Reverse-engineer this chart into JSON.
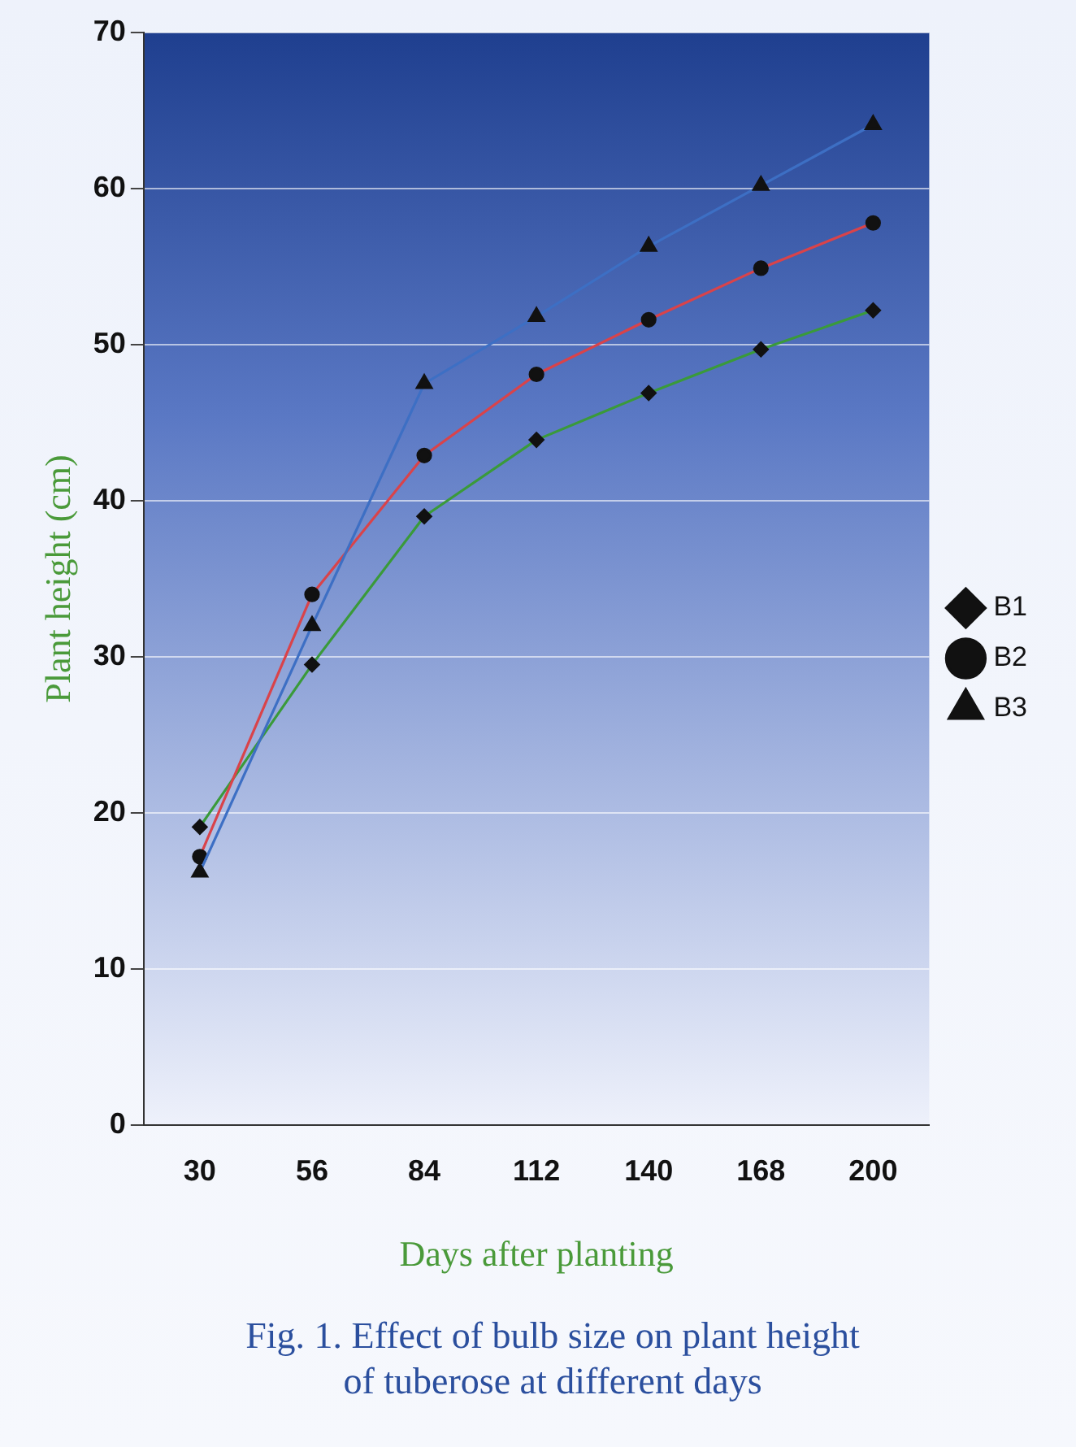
{
  "chart_data": {
    "type": "line",
    "title": "Fig. 1. Effect of bulb size on plant height of tuberose at different days",
    "xlabel": "Days after planting",
    "ylabel": "Plant height (cm)",
    "categories": [
      "30",
      "56",
      "84",
      "112",
      "140",
      "168",
      "200"
    ],
    "series": [
      {
        "name": "B1",
        "color": "#3a9a3a",
        "marker": "diamond",
        "values": [
          19.1,
          29.5,
          39.0,
          43.9,
          46.9,
          49.7,
          52.2
        ]
      },
      {
        "name": "B2",
        "color": "#d9434a",
        "marker": "circle",
        "values": [
          17.2,
          34.0,
          42.9,
          48.1,
          51.6,
          54.9,
          57.8
        ]
      },
      {
        "name": "B3",
        "color": "#3d6fc4",
        "marker": "triangle",
        "values": [
          16.2,
          32.0,
          47.5,
          51.8,
          56.3,
          60.2,
          64.1
        ]
      }
    ],
    "ylim": [
      0,
      70
    ],
    "yticks": [
      0,
      10,
      20,
      30,
      40,
      50,
      60,
      70
    ],
    "grid": "y",
    "legend": "right",
    "line_style": "solid"
  }
}
